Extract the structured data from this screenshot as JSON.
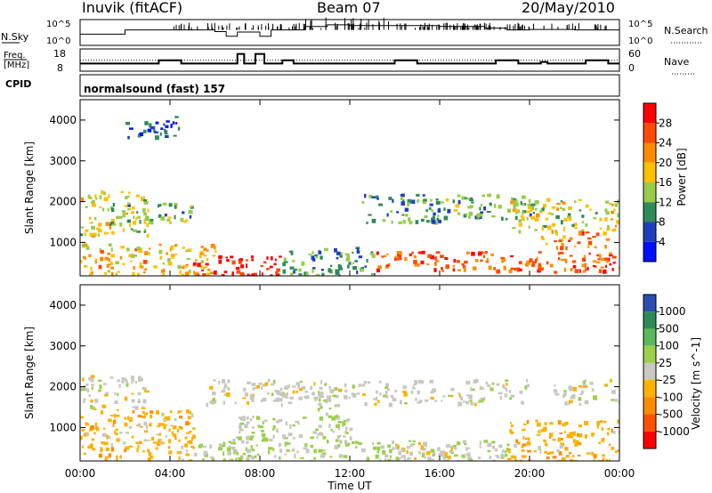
{
  "header": {
    "station": "Inuvik (fitACF)",
    "beam": "Beam 07",
    "date": "20/May/2010"
  },
  "sky_panel": {
    "left_label": "N.Sky",
    "right_label": "N.Search",
    "ticks_left": [
      "10^5",
      "10^0"
    ],
    "ticks_right": [
      "10^5",
      "10^0"
    ]
  },
  "freq_panel": {
    "left_label_1": "Freq.",
    "left_label_2": "[MHz]",
    "right_label": "Nave",
    "ticks_left": [
      "18",
      "8"
    ],
    "ticks_right": [
      "60",
      "0"
    ]
  },
  "cpid": {
    "label": "CPID",
    "text": "normalsound (fast) 157"
  },
  "xaxis": {
    "ticks": [
      "00:00",
      "04:00",
      "08:00",
      "12:00",
      "16:00",
      "20:00",
      "00:00"
    ],
    "label": "Time UT"
  },
  "power_panel": {
    "ylabel": "Slant Range [km]",
    "yticks": [
      "1000",
      "2000",
      "3000",
      "4000"
    ],
    "cbar_label": "Power [dB]",
    "cbar_ticks": [
      "28",
      "24",
      "20",
      "16",
      "12",
      "8",
      "4"
    ],
    "cbar_colors": [
      "#ff0000",
      "#ff4a00",
      "#ff8c00",
      "#ffc000",
      "#98cc48",
      "#2e8b57",
      "#1e40c0",
      "#0010ff"
    ]
  },
  "velocity_panel": {
    "ylabel": "Slant Range [km]",
    "yticks": [
      "1000",
      "2000",
      "3000",
      "4000"
    ],
    "cbar_label": "Velocity [m s^-1]",
    "cbar_ticks": [
      "1000",
      "500",
      "100",
      "25",
      "-25",
      "-100",
      "-500",
      "-1000"
    ],
    "cbar_colors": [
      "#2a4fb0",
      "#2e8b57",
      "#5cb85c",
      "#9ad04a",
      "#c8c8c0",
      "#ffb000",
      "#ff8c00",
      "#ff5000",
      "#ff0000"
    ]
  },
  "chart_data": [
    {
      "type": "line",
      "title": "N.Sky / N.Search",
      "x": [
        0,
        2,
        4,
        6,
        6.5,
        7,
        8,
        8.5,
        9,
        10,
        11,
        12,
        13,
        14,
        16,
        18,
        19,
        20,
        22,
        24
      ],
      "series": [
        {
          "name": "N.Sky",
          "values": [
            2,
            3,
            3,
            2.6,
            1.5,
            2.5,
            1.5,
            3,
            3,
            3.8,
            4.2,
            4,
            4,
            4,
            3.8,
            3.4,
            3,
            3.1,
            3,
            3
          ]
        }
      ],
      "ylim": [
        0,
        5
      ]
    },
    {
      "type": "line",
      "title": "Freq. / Nave",
      "x": [
        0,
        3.5,
        4.5,
        6.3,
        7,
        7.3,
        7.8,
        8.2,
        9,
        9.5,
        10,
        14,
        15,
        18.5,
        19.5,
        20.5,
        20.8,
        22.5,
        23.5,
        24
      ],
      "series": [
        {
          "name": "Freq.",
          "values": [
            10,
            12,
            10,
            10,
            16,
            10,
            16,
            10,
            12,
            10,
            10,
            12,
            10,
            12,
            10,
            11,
            10,
            12,
            10,
            10
          ]
        }
      ],
      "ylim": [
        8,
        18
      ],
      "annotations": [
        "Nave dotted reference at 12"
      ]
    },
    {
      "type": "heatmap",
      "title": "Power",
      "xlabel": "Time UT",
      "ylabel": "Slant Range [km]",
      "xlim": [
        0,
        24
      ],
      "ylim": [
        180,
        4500
      ],
      "colorbar_label": "Power [dB]",
      "colorbar_range": [
        0,
        30
      ],
      "bands": [
        {
          "t0": 0,
          "t1": 6,
          "r0": 180,
          "r1": 1000,
          "value": 18
        },
        {
          "t0": 5,
          "t1": 9,
          "r0": 200,
          "r1": 700,
          "value": 28
        },
        {
          "t0": 0,
          "t1": 3,
          "r0": 1200,
          "r1": 2300,
          "value": 14
        },
        {
          "t0": 2,
          "t1": 5,
          "r0": 1500,
          "r1": 2000,
          "value": 12
        },
        {
          "t0": 9,
          "t1": 13,
          "r0": 180,
          "r1": 900,
          "value": 10
        },
        {
          "t0": 12.5,
          "t1": 16,
          "r0": 1500,
          "r1": 2200,
          "value": 9
        },
        {
          "t0": 13,
          "t1": 24,
          "r0": 300,
          "r1": 800,
          "value": 24
        },
        {
          "t0": 16,
          "t1": 20,
          "r0": 1600,
          "r1": 2200,
          "value": 11
        },
        {
          "t0": 19,
          "t1": 24,
          "r0": 1300,
          "r1": 2100,
          "value": 15
        },
        {
          "t0": 20.5,
          "t1": 23.5,
          "r0": 900,
          "r1": 1300,
          "value": 22
        },
        {
          "t0": 2,
          "t1": 4.5,
          "r0": 3600,
          "r1": 4100,
          "value": 6
        }
      ]
    },
    {
      "type": "heatmap",
      "title": "Velocity",
      "xlabel": "Time UT",
      "ylabel": "Slant Range [km]",
      "xlim": [
        0,
        24
      ],
      "ylim": [
        180,
        4500
      ],
      "colorbar_label": "Velocity [m s^-1]",
      "colorbar_range": [
        -1000,
        1000
      ],
      "bands": [
        {
          "t0": 0,
          "t1": 5,
          "r0": 180,
          "r1": 1500,
          "value": -200
        },
        {
          "t0": 0,
          "t1": 3,
          "r0": 1500,
          "r1": 2300,
          "value": 0
        },
        {
          "t0": 5,
          "t1": 12,
          "r0": 180,
          "r1": 800,
          "value": 150
        },
        {
          "t0": 7,
          "t1": 12,
          "r0": 800,
          "r1": 1300,
          "value": 60
        },
        {
          "t0": 5.5,
          "t1": 20,
          "r0": 1600,
          "r1": 2200,
          "value": 0
        },
        {
          "t0": 12,
          "t1": 19,
          "r0": 180,
          "r1": 700,
          "value": 80
        },
        {
          "t0": 14,
          "t1": 16.5,
          "r0": 200,
          "r1": 700,
          "value": -60
        },
        {
          "t0": 19,
          "t1": 24,
          "r0": 180,
          "r1": 1200,
          "value": -250
        },
        {
          "t0": 21,
          "t1": 24,
          "r0": 1600,
          "r1": 2200,
          "value": 0
        },
        {
          "t0": 10.5,
          "t1": 11.5,
          "r0": 1000,
          "r1": 2000,
          "value": 150
        }
      ]
    }
  ]
}
